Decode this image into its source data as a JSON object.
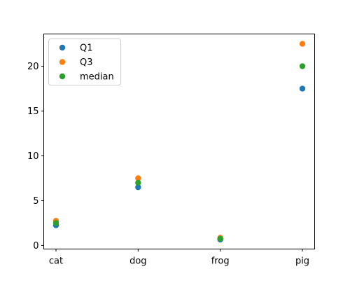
{
  "chart_data": {
    "type": "scatter",
    "categories": [
      "cat",
      "dog",
      "frog",
      "pig"
    ],
    "series": [
      {
        "name": "Q1",
        "color": "#1f77b4",
        "values": [
          2.25,
          6.5,
          0.65,
          17.5
        ]
      },
      {
        "name": "Q3",
        "color": "#ff7f0e",
        "values": [
          2.75,
          7.5,
          0.85,
          22.5
        ]
      },
      {
        "name": "median",
        "color": "#2ca02c",
        "values": [
          2.5,
          7.0,
          0.75,
          20.0
        ]
      }
    ],
    "y_ticks": [
      0,
      5,
      10,
      15,
      20
    ],
    "ylim": [
      -0.4,
      23.6
    ],
    "grid": false,
    "legend_position": "top-left"
  }
}
